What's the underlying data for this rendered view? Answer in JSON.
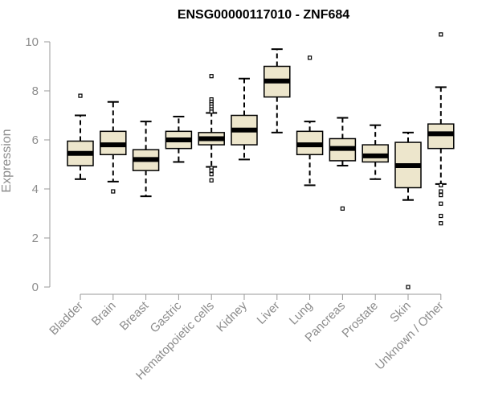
{
  "chart_data": {
    "type": "boxplot",
    "title": "ENSG00000117010 - ZNF684",
    "xlabel": "",
    "ylabel": "Expression",
    "ylim": [
      0,
      10
    ],
    "yticks": [
      "0",
      "2",
      "4",
      "6",
      "8",
      "10"
    ],
    "grid": false,
    "box_fill": "#ede6cc",
    "categories": [
      "Bladder",
      "Brain",
      "Breast",
      "Gastric",
      "Hematopoietic cells",
      "Kidney",
      "Liver",
      "Lung",
      "Pancreas",
      "Prostate",
      "Skin",
      "Unknown / Other"
    ],
    "boxes": [
      {
        "whisker_low": 4.4,
        "q1": 4.95,
        "median": 5.45,
        "q3": 5.95,
        "whisker_high": 7.0,
        "outliers": [
          7.8
        ]
      },
      {
        "whisker_low": 4.3,
        "q1": 5.4,
        "median": 5.8,
        "q3": 6.35,
        "whisker_high": 7.55,
        "outliers": [
          3.9
        ]
      },
      {
        "whisker_low": 3.7,
        "q1": 4.75,
        "median": 5.2,
        "q3": 5.6,
        "whisker_high": 6.75,
        "outliers": []
      },
      {
        "whisker_low": 5.1,
        "q1": 5.65,
        "median": 6.0,
        "q3": 6.35,
        "whisker_high": 6.95,
        "outliers": []
      },
      {
        "whisker_low": 4.9,
        "q1": 5.8,
        "median": 6.05,
        "q3": 6.3,
        "whisker_high": 7.1,
        "outliers": [
          8.6,
          7.65,
          7.55,
          7.45,
          7.35,
          7.25,
          7.15,
          4.85,
          4.75,
          4.6,
          4.35
        ]
      },
      {
        "whisker_low": 5.2,
        "q1": 5.8,
        "median": 6.4,
        "q3": 7.0,
        "whisker_high": 8.5,
        "outliers": []
      },
      {
        "whisker_low": 6.3,
        "q1": 7.75,
        "median": 8.4,
        "q3": 9.0,
        "whisker_high": 9.7,
        "outliers": []
      },
      {
        "whisker_low": 4.15,
        "q1": 5.4,
        "median": 5.8,
        "q3": 6.35,
        "whisker_high": 6.75,
        "outliers": [
          9.35
        ]
      },
      {
        "whisker_low": 4.95,
        "q1": 5.15,
        "median": 5.65,
        "q3": 6.05,
        "whisker_high": 6.9,
        "outliers": [
          3.2
        ]
      },
      {
        "whisker_low": 4.4,
        "q1": 5.1,
        "median": 5.35,
        "q3": 5.8,
        "whisker_high": 6.6,
        "outliers": []
      },
      {
        "whisker_low": 3.55,
        "q1": 4.05,
        "median": 4.95,
        "q3": 5.9,
        "whisker_high": 6.3,
        "outliers": [
          0.0
        ]
      },
      {
        "whisker_low": 4.2,
        "q1": 5.65,
        "median": 6.25,
        "q3": 6.65,
        "whisker_high": 8.15,
        "outliers": [
          10.3,
          4.15,
          3.9,
          3.75,
          3.4,
          2.9,
          2.6
        ]
      }
    ]
  }
}
